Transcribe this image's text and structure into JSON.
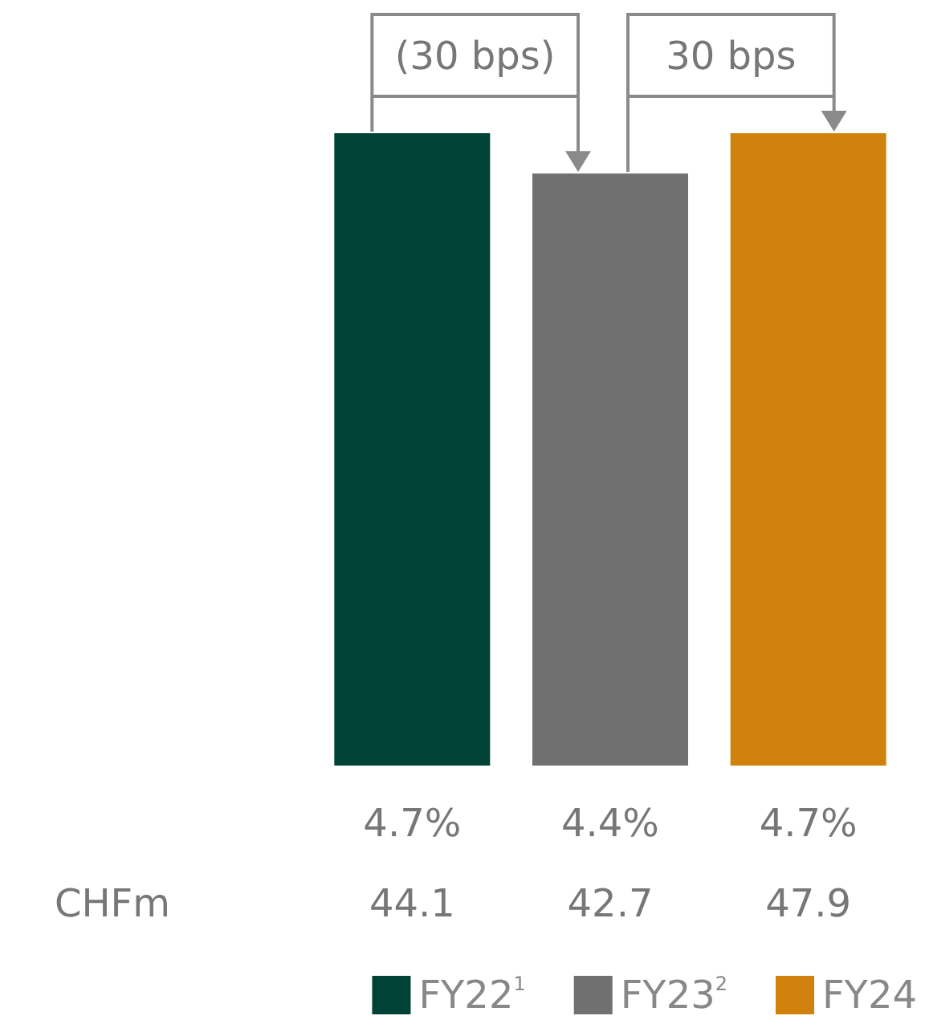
{
  "chart_data": {
    "type": "bar",
    "categories": [
      null,
      null,
      null
    ],
    "stacked": true,
    "series": [
      {
        "name": "FY22$^{1}$",
        "color": "#004236",
        "values": [
          4.7,
          null,
          null
        ],
        "value_labels": [
          "4.7%",
          null,
          null
        ]
      },
      {
        "name": "FY23$^{2}$",
        "color": "#707070",
        "values": [
          null,
          4.4,
          null
        ],
        "value_labels": [
          null,
          "4.4%",
          null
        ]
      },
      {
        "name": "FY24",
        "color": "#d0820c",
        "values": [
          null,
          null,
          4.7
        ],
        "value_labels": [
          null,
          null,
          "4.7%"
        ]
      }
    ],
    "annotations": [
      "(30 bps)",
      "30 bps",
      "CHFm",
      "44.1",
      "42.7",
      "47.9"
    ],
    "legend": "bottom"
  }
}
